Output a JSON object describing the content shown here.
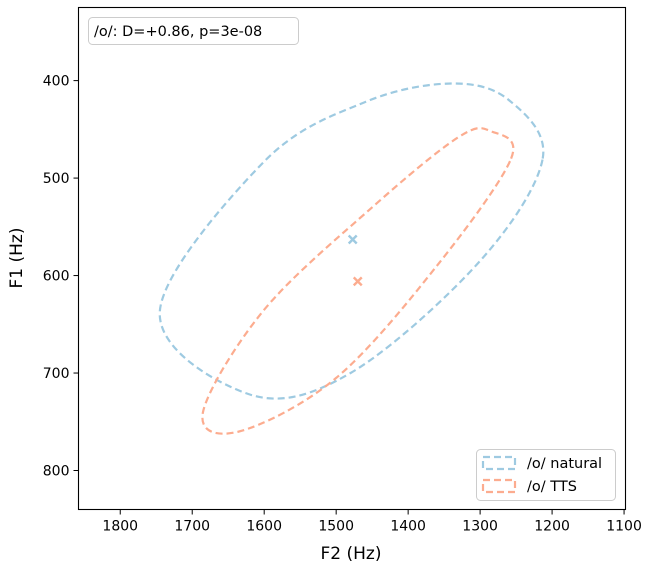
{
  "chart_data": {
    "type": "scatter",
    "xlabel": "F2 (Hz)",
    "ylabel": "F1 (Hz)",
    "xlim": [
      1858,
      1098
    ],
    "ylim": [
      840,
      325
    ],
    "x_inverted": true,
    "y_inverted": true,
    "xticks": [
      1800,
      1700,
      1600,
      1500,
      1400,
      1300,
      1200,
      1100
    ],
    "yticks": [
      400,
      500,
      600,
      700,
      800
    ],
    "grid": false,
    "annotation": "/o/: D=+0.86, p=3e-08",
    "legend_position": "lower-right",
    "series": [
      {
        "name": "/o/ natural",
        "color": "#9ecae1",
        "mean": {
          "f2": 1477,
          "f1": 563
        },
        "ellipse_points": [
          [
            1213,
            480
          ],
          [
            1260,
            420
          ],
          [
            1340,
            403
          ],
          [
            1460,
            422
          ],
          [
            1600,
            483
          ],
          [
            1745,
            637
          ],
          [
            1620,
            722
          ],
          [
            1480,
            700
          ],
          [
            1300,
            585
          ],
          [
            1213,
            480
          ]
        ]
      },
      {
        "name": "/o/ TTS",
        "color": "#fcac8f",
        "mean": {
          "f2": 1470,
          "f1": 606
        },
        "ellipse_points": [
          [
            1257,
            480
          ],
          [
            1285,
            452
          ],
          [
            1330,
            458
          ],
          [
            1450,
            530
          ],
          [
            1600,
            635
          ],
          [
            1685,
            740
          ],
          [
            1635,
            760
          ],
          [
            1500,
            705
          ],
          [
            1360,
            590
          ],
          [
            1257,
            480
          ]
        ]
      }
    ]
  }
}
